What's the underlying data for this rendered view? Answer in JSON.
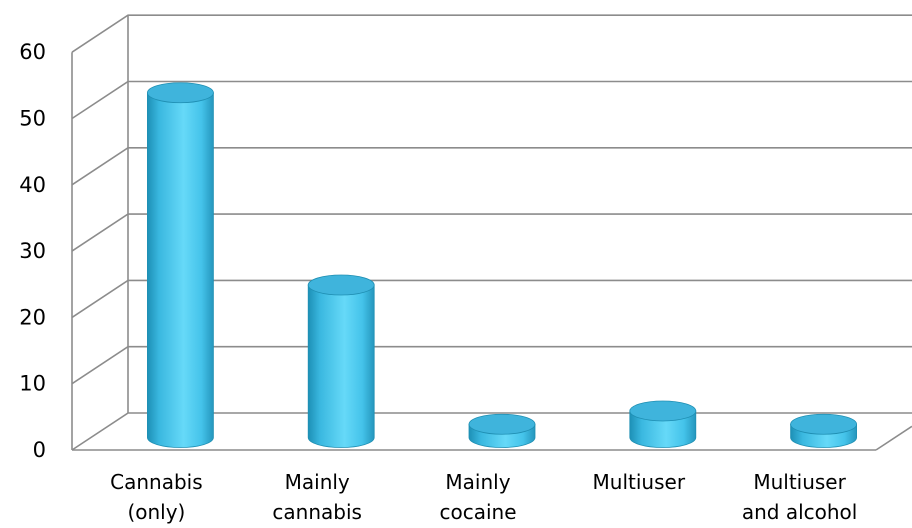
{
  "chart_data": {
    "type": "bar",
    "style": "3d-cylinder",
    "categories": [
      [
        "Cannabis",
        "(only)"
      ],
      [
        "Mainly",
        "cannabis"
      ],
      [
        "Mainly",
        "cocaine"
      ],
      [
        "Multiuser"
      ],
      [
        "Multiuser",
        "and alcohol"
      ]
    ],
    "values": [
      52,
      23,
      2,
      4,
      2
    ],
    "ylim": [
      0,
      60
    ],
    "yticks": [
      0,
      10,
      20,
      30,
      40,
      50,
      60
    ],
    "grid": true,
    "legend": "none",
    "title": "",
    "xlabel": "",
    "ylabel": "",
    "colors": {
      "bar_fill": "#4fc8ea",
      "bar_edge": "#1f8fb3",
      "bar_top": "#3fb4dc",
      "grid": "#8c8c8c"
    }
  }
}
